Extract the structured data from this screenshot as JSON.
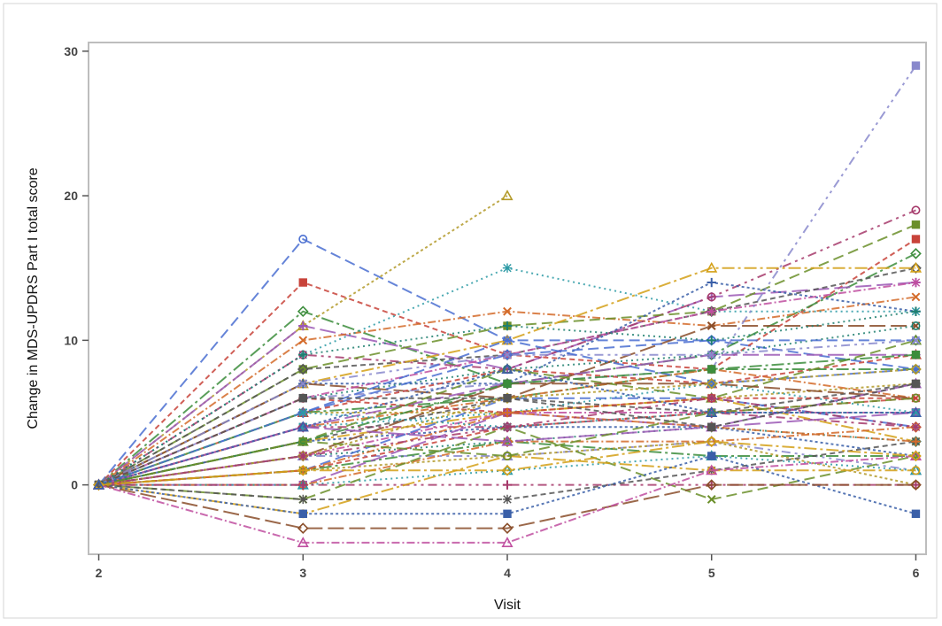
{
  "chart_data": {
    "type": "line",
    "title": "",
    "xlabel": "Visit",
    "ylabel": "Change in MDS-UPDRS Part I total score",
    "x_ticks": [
      2,
      3,
      4,
      5,
      6
    ],
    "y_ticks": [
      0,
      10,
      20,
      30
    ],
    "xlim": [
      1.95,
      6.05
    ],
    "ylim": [
      -4.8,
      30.6
    ],
    "grid": false,
    "legend": "none",
    "colors": [
      "#4a6fd1",
      "#c8433a",
      "#3c8d3c",
      "#b39a2a",
      "#9b58b5",
      "#d46b2a",
      "#2c9aa5",
      "#a63a6b",
      "#6b8f2a",
      "#555555",
      "#d4a017",
      "#3a5fa8",
      "#8a4e2a",
      "#c04fa0",
      "#1f7f6f",
      "#8888cc"
    ],
    "series": [
      {
        "values": [
          0,
          17,
          10,
          10,
          8
        ]
      },
      {
        "values": [
          0,
          14,
          9,
          8,
          17
        ]
      },
      {
        "values": [
          0,
          12,
          7,
          9,
          16
        ]
      },
      {
        "values": [
          0,
          11,
          20,
          null,
          null
        ]
      },
      {
        "values": [
          0,
          11,
          8,
          13,
          14
        ]
      },
      {
        "values": [
          0,
          10,
          12,
          11,
          13
        ]
      },
      {
        "values": [
          0,
          9,
          15,
          12,
          12
        ]
      },
      {
        "values": [
          0,
          9,
          8,
          13,
          19
        ]
      },
      {
        "values": [
          0,
          8,
          11,
          12,
          18
        ]
      },
      {
        "values": [
          0,
          8,
          9,
          12,
          15
        ]
      },
      {
        "values": [
          0,
          7,
          10,
          15,
          15
        ]
      },
      {
        "values": [
          0,
          7,
          7,
          14,
          12
        ]
      },
      {
        "values": [
          0,
          7,
          6,
          11,
          11
        ]
      },
      {
        "values": [
          0,
          6,
          9,
          12,
          14
        ]
      },
      {
        "values": [
          0,
          6,
          8,
          9,
          11
        ]
      },
      {
        "values": [
          0,
          6,
          7,
          8,
          29
        ]
      },
      {
        "values": [
          0,
          5,
          9,
          10,
          10
        ]
      },
      {
        "values": [
          0,
          5,
          8,
          7,
          9
        ]
      },
      {
        "values": [
          0,
          5,
          6,
          8,
          8
        ]
      },
      {
        "values": [
          0,
          5,
          5,
          6,
          7
        ]
      },
      {
        "values": [
          0,
          4,
          7,
          9,
          9
        ]
      },
      {
        "values": [
          0,
          4,
          6,
          8,
          6
        ]
      },
      {
        "values": [
          0,
          4,
          5,
          7,
          5
        ]
      },
      {
        "values": [
          0,
          4,
          4,
          5,
          4
        ]
      },
      {
        "values": [
          0,
          3,
          8,
          6,
          10
        ]
      },
      {
        "values": [
          0,
          3,
          6,
          5,
          7
        ]
      },
      {
        "values": [
          0,
          3,
          5,
          6,
          3
        ]
      },
      {
        "values": [
          0,
          3,
          4,
          4,
          2
        ]
      },
      {
        "values": [
          0,
          2,
          7,
          7,
          6
        ]
      },
      {
        "values": [
          0,
          2,
          5,
          5,
          5
        ]
      },
      {
        "values": [
          0,
          2,
          3,
          4,
          3
        ]
      },
      {
        "values": [
          0,
          2,
          2,
          3,
          1
        ]
      },
      {
        "values": [
          0,
          1,
          6,
          6,
          4
        ]
      },
      {
        "values": [
          0,
          1,
          4,
          5,
          6
        ]
      },
      {
        "values": [
          0,
          1,
          3,
          2,
          2
        ]
      },
      {
        "values": [
          0,
          1,
          2,
          3,
          0
        ]
      },
      {
        "values": [
          0,
          0,
          5,
          4,
          5
        ]
      },
      {
        "values": [
          0,
          0,
          3,
          3,
          4
        ]
      },
      {
        "values": [
          0,
          0,
          1,
          2,
          1
        ]
      },
      {
        "values": [
          0,
          0,
          0,
          0,
          0
        ]
      },
      {
        "values": [
          0,
          -1,
          4,
          -1,
          2
        ]
      },
      {
        "values": [
          0,
          -1,
          -1,
          1,
          3
        ]
      },
      {
        "values": [
          0,
          -2,
          2,
          1,
          1
        ]
      },
      {
        "values": [
          0,
          -2,
          -2,
          2,
          -2
        ]
      },
      {
        "values": [
          0,
          -3,
          -3,
          0,
          0
        ]
      },
      {
        "values": [
          0,
          -4,
          -4,
          1,
          2
        ]
      },
      {
        "values": [
          0,
          9,
          11,
          10,
          12
        ]
      },
      {
        "values": [
          0,
          7,
          9,
          9,
          10
        ]
      },
      {
        "values": [
          0,
          5,
          10,
          7,
          8
        ]
      },
      {
        "values": [
          0,
          6,
          5,
          6,
          6
        ]
      },
      {
        "values": [
          0,
          3,
          7,
          8,
          9
        ]
      },
      {
        "values": [
          0,
          2,
          6,
          7,
          8
        ]
      },
      {
        "values": [
          0,
          4,
          3,
          4,
          7
        ]
      },
      {
        "values": [
          0,
          1,
          5,
          4,
          3
        ]
      },
      {
        "values": [
          0,
          5,
          4,
          5,
          5
        ]
      },
      {
        "values": [
          0,
          2,
          4,
          6,
          4
        ]
      },
      {
        "values": [
          0,
          3,
          2,
          5,
          6
        ]
      },
      {
        "values": [
          0,
          6,
          6,
          4,
          7
        ]
      },
      {
        "values": [
          0,
          1,
          1,
          3,
          2
        ]
      },
      {
        "values": [
          0,
          4,
          8,
          5,
          5
        ]
      }
    ]
  }
}
